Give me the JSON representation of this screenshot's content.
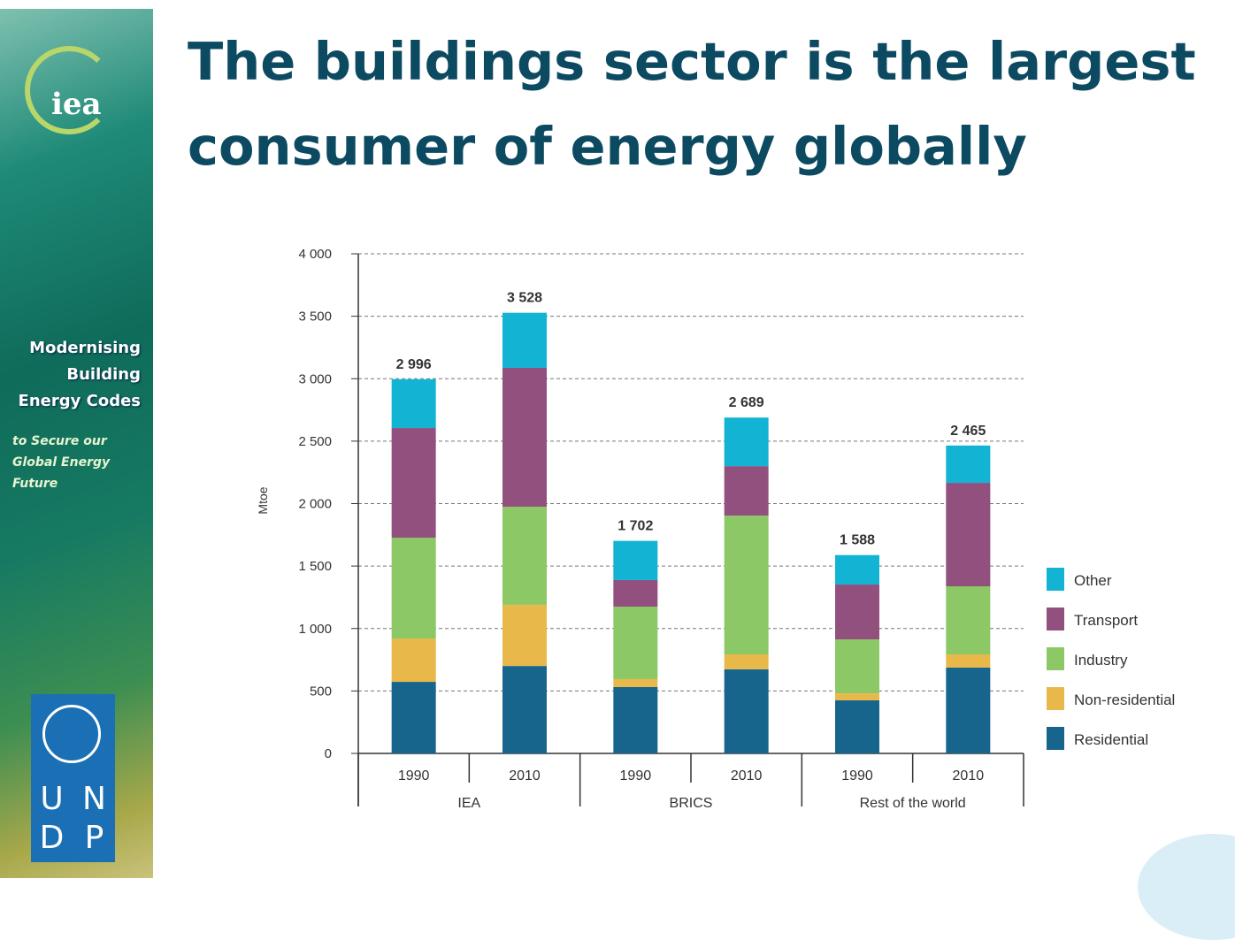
{
  "slide": {
    "title": "The buildings sector is the largest consumer of energy globally"
  },
  "sidebar": {
    "logo_text": "iea",
    "heading_lines": [
      "Modernising",
      "Building",
      "Energy Codes"
    ],
    "subtitle_lines": [
      "to Secure our",
      "Global Energy",
      "Future"
    ],
    "partner_logo_letters": [
      "U",
      "N",
      "D",
      "P"
    ]
  },
  "chart_data": {
    "type": "bar",
    "stacked": true,
    "ylabel": "Mtoe",
    "ylim": [
      0,
      4000
    ],
    "yticks": [
      "0",
      "500",
      "1 000",
      "1 500",
      "2 000",
      "2 500",
      "3 000",
      "3 500",
      "4 000"
    ],
    "grid": true,
    "legend_position": "right",
    "groups": [
      "IEA",
      "BRICS",
      "Rest of the world"
    ],
    "categories": [
      "1990",
      "2010",
      "1990",
      "2010",
      "1990",
      "2010"
    ],
    "totals": [
      2996,
      3528,
      1702,
      2689,
      1588,
      2465
    ],
    "total_labels": [
      "2 996",
      "3 528",
      "1 702",
      "2 689",
      "1 588",
      "2 465"
    ],
    "series": [
      {
        "name": "Residential",
        "color": "#17658c",
        "values": [
          573,
          700,
          531,
          673,
          425,
          687
        ]
      },
      {
        "name": "Non-residential",
        "color": "#e8b94a",
        "values": [
          347,
          490,
          64,
          120,
          56,
          106
        ]
      },
      {
        "name": "Industry",
        "color": "#8cc865",
        "values": [
          807,
          785,
          580,
          1111,
          432,
          545
        ]
      },
      {
        "name": "Transport",
        "color": "#92507e",
        "values": [
          878,
          1112,
          213,
          396,
          439,
          828
        ]
      },
      {
        "name": "Other",
        "color": "#13b3d3",
        "values": [
          391,
          441,
          314,
          389,
          236,
          299
        ]
      }
    ]
  }
}
